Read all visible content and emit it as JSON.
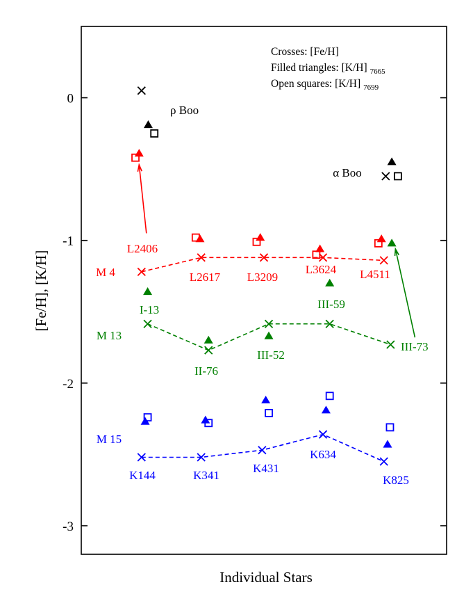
{
  "chart_data": {
    "type": "scatter",
    "title": "",
    "xlabel": "Individual Stars",
    "ylabel": "[Fe/H],  [K/H]",
    "xlim": [
      0,
      6
    ],
    "ylim": [
      -3.2,
      0.5
    ],
    "yticks": [
      0,
      -1,
      -2,
      -3
    ],
    "ytick_labels": [
      "0",
      "-1",
      "-2",
      "-3"
    ],
    "grid": false,
    "legend": {
      "placement": "top-right",
      "lines": [
        {
          "text": "Crosses: [Fe/H]",
          "sub": ""
        },
        {
          "text": "Filled triangles: [K/H]",
          "sub": "7665"
        },
        {
          "text": "Open squares: [K/H]",
          "sub": "7699"
        }
      ]
    },
    "colors": {
      "reference": "#000000",
      "M 4": "#ff0000",
      "M 13": "#008000",
      "M 15": "#0000ff"
    },
    "reference_stars": [
      {
        "name": "ρ Boo",
        "fe_h": {
          "x": 0.99,
          "y": 0.05
        },
        "k_h_7665": {
          "x": 1.1,
          "y": -0.19
        },
        "k_h_7699": {
          "x": 1.2,
          "y": -0.25
        }
      },
      {
        "name": "α Boo",
        "fe_h": {
          "x": 5.0,
          "y": -0.55
        },
        "k_h_7665": {
          "x": 5.1,
          "y": -0.45
        },
        "k_h_7699": {
          "x": 5.2,
          "y": -0.55
        }
      }
    ],
    "clusters": [
      {
        "name": "M 4",
        "color": "#ff0000",
        "stars": [
          {
            "label": "L2406",
            "fe_h": {
              "x": 0.99,
              "y": -1.22
            },
            "k_h_7665": {
              "x": 0.95,
              "y": -0.39
            },
            "k_h_7699": {
              "x": 0.89,
              "y": -0.42
            }
          },
          {
            "label": "L2617",
            "fe_h": {
              "x": 1.97,
              "y": -1.12
            },
            "k_h_7665": {
              "x": 1.95,
              "y": -0.99
            },
            "k_h_7699": {
              "x": 1.88,
              "y": -0.98
            }
          },
          {
            "label": "L3209",
            "fe_h": {
              "x": 3.0,
              "y": -1.12
            },
            "k_h_7665": {
              "x": 2.94,
              "y": -0.98
            },
            "k_h_7699": {
              "x": 2.88,
              "y": -1.01
            }
          },
          {
            "label": "L3624",
            "fe_h": {
              "x": 3.97,
              "y": -1.12
            },
            "k_h_7665": {
              "x": 3.92,
              "y": -1.06
            },
            "k_h_7699": {
              "x": 3.86,
              "y": -1.1
            }
          },
          {
            "label": "L4511",
            "fe_h": {
              "x": 4.97,
              "y": -1.14
            },
            "k_h_7665": {
              "x": 4.93,
              "y": -0.99
            },
            "k_h_7699": {
              "x": 4.88,
              "y": -1.02
            }
          }
        ]
      },
      {
        "name": "M 13",
        "color": "#008000",
        "stars": [
          {
            "label": "I-13",
            "fe_h": {
              "x": 1.09,
              "y": -1.585
            },
            "k_h_7665": {
              "x": 1.09,
              "y": -1.36
            }
          },
          {
            "label": "II-76",
            "fe_h": {
              "x": 2.09,
              "y": -1.77
            },
            "k_h_7665": {
              "x": 2.09,
              "y": -1.7
            }
          },
          {
            "label": "III-52",
            "fe_h": {
              "x": 3.08,
              "y": -1.585
            },
            "k_h_7665": {
              "x": 3.08,
              "y": -1.67
            }
          },
          {
            "label": "III-59",
            "fe_h": {
              "x": 4.08,
              "y": -1.585
            },
            "k_h_7665": {
              "x": 4.08,
              "y": -1.3
            }
          },
          {
            "label": "III-73",
            "fe_h": {
              "x": 5.08,
              "y": -1.73
            },
            "k_h_7665": {
              "x": 5.1,
              "y": -1.02
            }
          }
        ]
      },
      {
        "name": "M 15",
        "color": "#0000ff",
        "stars": [
          {
            "label": "K144",
            "fe_h": {
              "x": 0.99,
              "y": -2.52
            },
            "k_h_7665": {
              "x": 1.05,
              "y": -2.27
            },
            "k_h_7699": {
              "x": 1.09,
              "y": -2.24
            }
          },
          {
            "label": "K341",
            "fe_h": {
              "x": 1.97,
              "y": -2.52
            },
            "k_h_7665": {
              "x": 2.04,
              "y": -2.26
            },
            "k_h_7699": {
              "x": 2.09,
              "y": -2.28
            }
          },
          {
            "label": "K431",
            "fe_h": {
              "x": 2.97,
              "y": -2.47
            },
            "k_h_7665": {
              "x": 3.03,
              "y": -2.12
            },
            "k_h_7699": {
              "x": 3.08,
              "y": -2.21
            }
          },
          {
            "label": "K634",
            "fe_h": {
              "x": 3.97,
              "y": -2.36
            },
            "k_h_7665": {
              "x": 4.02,
              "y": -2.19
            },
            "k_h_7699": {
              "x": 4.08,
              "y": -2.09
            }
          },
          {
            "label": "K825",
            "fe_h": {
              "x": 4.97,
              "y": -2.55
            },
            "k_h_7665": {
              "x": 5.03,
              "y": -2.43
            },
            "k_h_7699": {
              "x": 5.07,
              "y": -2.31
            }
          }
        ]
      }
    ],
    "arrows": [
      {
        "color": "#ff0000",
        "from": {
          "x": 1.07,
          "y": -0.95
        },
        "to": {
          "x": 0.95,
          "y": -0.47
        }
      },
      {
        "color": "#008000",
        "from": {
          "x": 5.48,
          "y": -1.68
        },
        "to": {
          "x": 5.16,
          "y": -1.06
        }
      }
    ]
  }
}
